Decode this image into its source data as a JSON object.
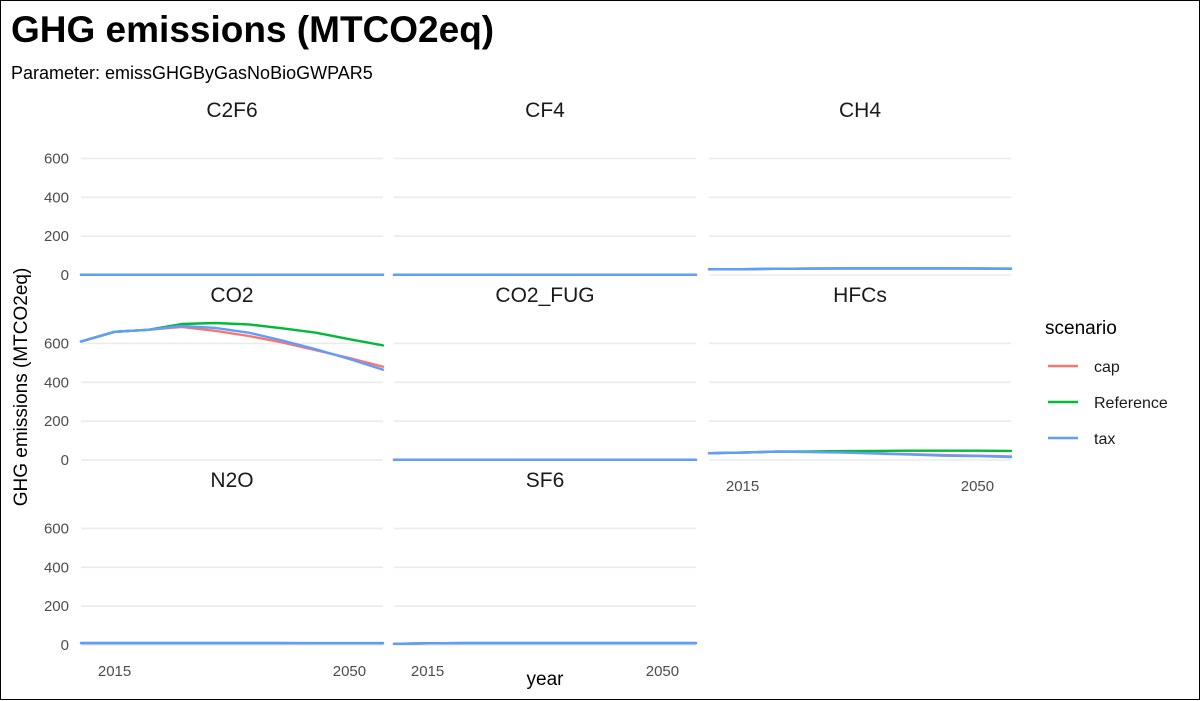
{
  "chart_data": {
    "type": "line",
    "title": "GHG emissions (MTCO2eq)",
    "subtitle": "Parameter: emissGHGByGasNoBioGWPAR5",
    "xlabel": "year",
    "ylabel": "GHG emissions (MTCO2eq)",
    "ylim": [
      0,
      700
    ],
    "y_ticks": [
      0,
      200,
      400,
      600
    ],
    "xlim": [
      2010,
      2055
    ],
    "x_ticks": [
      2015,
      2050
    ],
    "grid": true,
    "legend": {
      "title": "scenario",
      "position": "right"
    },
    "scenarios": [
      {
        "name": "cap",
        "color": "#F8766D"
      },
      {
        "name": "Reference",
        "color": "#00BA38"
      },
      {
        "name": "tax",
        "color": "#619CFF"
      }
    ],
    "x": [
      2010,
      2015,
      2020,
      2025,
      2030,
      2035,
      2040,
      2045,
      2050,
      2055
    ],
    "panels": [
      {
        "name": "C2F6",
        "series": [
          {
            "name": "cap",
            "values": [
              1,
              1,
              1,
              1,
              1,
              1,
              1,
              1,
              1,
              1
            ]
          },
          {
            "name": "Reference",
            "values": [
              1,
              1,
              1,
              1,
              1,
              1,
              1,
              1,
              1,
              1
            ]
          },
          {
            "name": "tax",
            "values": [
              1,
              1,
              1,
              1,
              1,
              1,
              1,
              1,
              1,
              1
            ]
          }
        ]
      },
      {
        "name": "CF4",
        "series": [
          {
            "name": "cap",
            "values": [
              1,
              1,
              1,
              1,
              1,
              1,
              1,
              1,
              1,
              1
            ]
          },
          {
            "name": "Reference",
            "values": [
              1,
              1,
              1,
              1,
              1,
              1,
              1,
              1,
              1,
              1
            ]
          },
          {
            "name": "tax",
            "values": [
              1,
              1,
              1,
              1,
              1,
              1,
              1,
              1,
              1,
              1
            ]
          }
        ]
      },
      {
        "name": "CH4",
        "series": [
          {
            "name": "cap",
            "values": [
              30,
              30,
              32,
              33,
              34,
              34,
              34,
              34,
              33,
              32
            ]
          },
          {
            "name": "Reference",
            "values": [
              30,
              30,
              32,
              33,
              34,
              34,
              34,
              34,
              34,
              33
            ]
          },
          {
            "name": "tax",
            "values": [
              30,
              30,
              32,
              33,
              34,
              34,
              34,
              34,
              33,
              32
            ]
          }
        ]
      },
      {
        "name": "CO2",
        "series": [
          {
            "name": "cap",
            "values": [
              610,
              660,
              670,
              685,
              665,
              638,
              605,
              565,
              525,
              480
            ]
          },
          {
            "name": "Reference",
            "values": [
              610,
              660,
              670,
              700,
              705,
              698,
              678,
              655,
              622,
              590
            ]
          },
          {
            "name": "tax",
            "values": [
              610,
              660,
              670,
              690,
              680,
              655,
              615,
              570,
              520,
              465
            ]
          }
        ]
      },
      {
        "name": "CO2_FUG",
        "series": [
          {
            "name": "cap",
            "values": [
              1,
              1,
              1,
              1,
              1,
              1,
              1,
              1,
              1,
              1
            ]
          },
          {
            "name": "Reference",
            "values": [
              1,
              1,
              1,
              1,
              1,
              1,
              1,
              1,
              1,
              1
            ]
          },
          {
            "name": "tax",
            "values": [
              1,
              1,
              1,
              1,
              1,
              1,
              1,
              1,
              1,
              1
            ]
          }
        ]
      },
      {
        "name": "HFCs",
        "series": [
          {
            "name": "cap",
            "values": [
              35,
              38,
              43,
              42,
              40,
              35,
              30,
              25,
              22,
              18
            ]
          },
          {
            "name": "Reference",
            "values": [
              35,
              38,
              43,
              44,
              46,
              47,
              48,
              48,
              48,
              47
            ]
          },
          {
            "name": "tax",
            "values": [
              35,
              38,
              43,
              41,
              38,
              33,
              28,
              22,
              20,
              15
            ]
          }
        ]
      },
      {
        "name": "N2O",
        "series": [
          {
            "name": "cap",
            "values": [
              10,
              10,
              10,
              10,
              10,
              10,
              10,
              9,
              9,
              9
            ]
          },
          {
            "name": "Reference",
            "values": [
              10,
              10,
              10,
              10,
              10,
              10,
              10,
              10,
              10,
              10
            ]
          },
          {
            "name": "tax",
            "values": [
              10,
              10,
              10,
              10,
              10,
              10,
              10,
              9,
              9,
              9
            ]
          }
        ]
      },
      {
        "name": "SF6",
        "series": [
          {
            "name": "cap",
            "values": [
              6,
              9,
              10,
              10,
              10,
              10,
              10,
              10,
              10,
              10
            ]
          },
          {
            "name": "Reference",
            "values": [
              6,
              9,
              10,
              10,
              10,
              10,
              10,
              10,
              10,
              10
            ]
          },
          {
            "name": "tax",
            "values": [
              6,
              9,
              10,
              10,
              10,
              10,
              10,
              10,
              10,
              10
            ]
          }
        ]
      }
    ]
  }
}
